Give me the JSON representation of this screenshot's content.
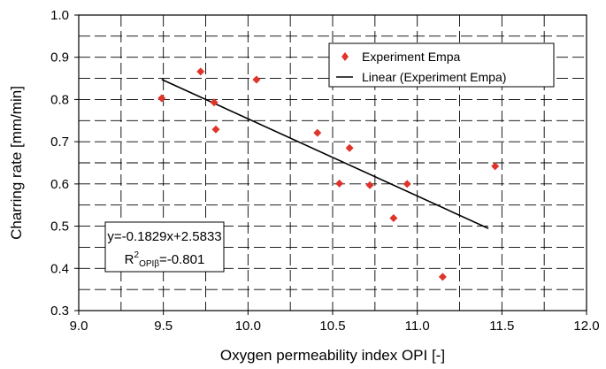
{
  "chart_data": {
    "type": "scatter",
    "title": "",
    "xlabel": "Oxygen permeability index OPI [-]",
    "ylabel": "Charring rate [mm/min]",
    "xlim": [
      9.0,
      12.0
    ],
    "ylim": [
      0.3,
      1.0
    ],
    "x_ticks": [
      "9.0",
      "9.5",
      "10.0",
      "10.5",
      "11.0",
      "11.5",
      "12.0"
    ],
    "y_ticks": [
      "0.3",
      "0.4",
      "0.5",
      "0.6",
      "0.7",
      "0.8",
      "0.9",
      "1.0"
    ],
    "grid": "dashed, major and minor",
    "legend_position": "top-right",
    "series": [
      {
        "name": "Experiment Empa",
        "kind": "points",
        "marker": "diamond",
        "color": "#e0342b",
        "points": [
          {
            "x": 9.49,
            "y": 0.803
          },
          {
            "x": 9.72,
            "y": 0.866
          },
          {
            "x": 9.8,
            "y": 0.793
          },
          {
            "x": 9.81,
            "y": 0.729
          },
          {
            "x": 10.05,
            "y": 0.847
          },
          {
            "x": 10.41,
            "y": 0.721
          },
          {
            "x": 10.54,
            "y": 0.601
          },
          {
            "x": 10.6,
            "y": 0.685
          },
          {
            "x": 10.72,
            "y": 0.597
          },
          {
            "x": 10.86,
            "y": 0.519
          },
          {
            "x": 10.94,
            "y": 0.6
          },
          {
            "x": 11.15,
            "y": 0.38
          },
          {
            "x": 11.46,
            "y": 0.642
          }
        ]
      },
      {
        "name": "Linear (Experiment Empa)",
        "kind": "trendline",
        "color": "#000000",
        "slope": -0.1829,
        "intercept": 2.5833,
        "x_range": [
          9.49,
          11.42
        ]
      }
    ],
    "annotation": {
      "equation": "y=-0.1829x+2.5833",
      "r_main": "R",
      "r_sup": "2",
      "r_sub": "OPIβ",
      "r_value": "=-0.801"
    }
  }
}
